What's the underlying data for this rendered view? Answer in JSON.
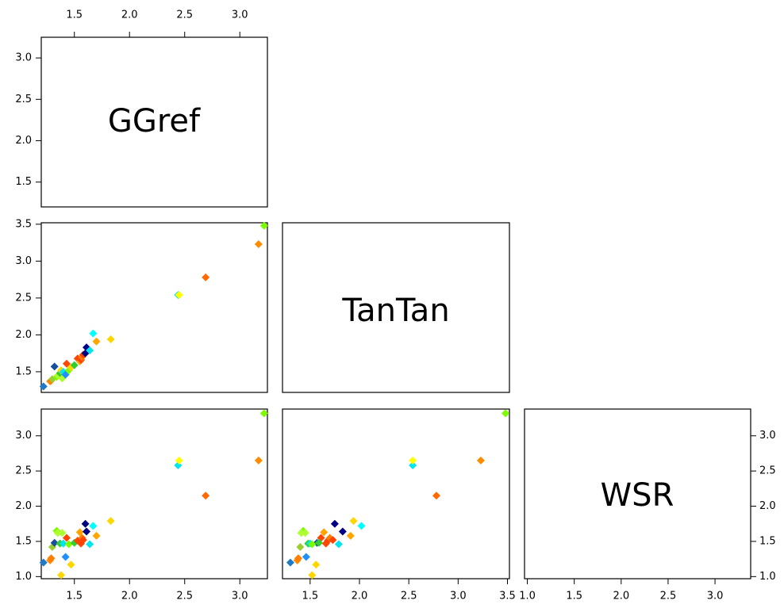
{
  "chart_data": {
    "type": "scatter",
    "variables": [
      "GGref",
      "TanTan",
      "WSR"
    ],
    "axes": {
      "GGref": {
        "range": [
          1.2,
          3.25
        ],
        "ticks": [
          1.5,
          2.0,
          2.5,
          3.0
        ],
        "tick_labels": [
          "1.5",
          "2.0",
          "2.5",
          "3.0"
        ]
      },
      "TanTan": {
        "range": [
          1.22,
          3.52
        ],
        "ticks": [
          1.5,
          2.0,
          2.5,
          3.0,
          3.5
        ],
        "tick_labels": [
          "1.5",
          "2.0",
          "2.5",
          "3.0",
          "3.5"
        ]
      },
      "WSR": {
        "range": [
          0.97,
          3.38
        ],
        "ticks": [
          1.0,
          1.5,
          2.0,
          2.5,
          3.0
        ],
        "tick_labels": [
          "1.0",
          "1.5",
          "2.0",
          "2.5",
          "3.0"
        ]
      }
    },
    "points": [
      {
        "GGref": 1.22,
        "TanTan": 1.3,
        "WSR": 1.2,
        "color": "#1f78c8"
      },
      {
        "GGref": 1.28,
        "TanTan": 1.37,
        "WSR": 1.23,
        "color": "#ff8c00"
      },
      {
        "GGref": 1.29,
        "TanTan": 1.38,
        "WSR": 1.26,
        "color": "#ff7f00"
      },
      {
        "GGref": 1.3,
        "TanTan": 1.4,
        "WSR": 1.42,
        "color": "#9acd32"
      },
      {
        "GGref": 1.32,
        "TanTan": 1.57,
        "WSR": 1.48,
        "color": "#1a4f9e"
      },
      {
        "GGref": 1.34,
        "TanTan": 1.43,
        "WSR": 1.65,
        "color": "#7cfc00"
      },
      {
        "GGref": 1.35,
        "TanTan": 1.45,
        "WSR": 1.62,
        "color": "#adff2f"
      },
      {
        "GGref": 1.37,
        "TanTan": 1.48,
        "WSR": 1.47,
        "color": "#32cd32"
      },
      {
        "GGref": 1.38,
        "TanTan": 1.52,
        "WSR": 1.02,
        "color": "#ffd700"
      },
      {
        "GGref": 1.39,
        "TanTan": 1.41,
        "WSR": 1.62,
        "color": "#adff2f"
      },
      {
        "GGref": 1.4,
        "TanTan": 1.5,
        "WSR": 1.47,
        "color": "#00e5ee"
      },
      {
        "GGref": 1.42,
        "TanTan": 1.46,
        "WSR": 1.28,
        "color": "#1e90ff"
      },
      {
        "GGref": 1.43,
        "TanTan": 1.61,
        "WSR": 1.55,
        "color": "#ff4500"
      },
      {
        "GGref": 1.45,
        "TanTan": 1.52,
        "WSR": 1.46,
        "color": "#7cfc00"
      },
      {
        "GGref": 1.47,
        "TanTan": 1.56,
        "WSR": 1.17,
        "color": "#ffd700"
      },
      {
        "GGref": 1.5,
        "TanTan": 1.59,
        "WSR": 1.48,
        "color": "#32cd32"
      },
      {
        "GGref": 1.53,
        "TanTan": 1.68,
        "WSR": 1.51,
        "color": "#ff4500"
      },
      {
        "GGref": 1.55,
        "TanTan": 1.64,
        "WSR": 1.63,
        "color": "#ffa500"
      },
      {
        "GGref": 1.56,
        "TanTan": 1.66,
        "WSR": 1.47,
        "color": "#ff4500"
      },
      {
        "GGref": 1.57,
        "TanTan": 1.7,
        "WSR": 1.55,
        "color": "#ff7f00"
      },
      {
        "GGref": 1.58,
        "TanTan": 1.73,
        "WSR": 1.52,
        "color": "#ff4500"
      },
      {
        "GGref": 1.6,
        "TanTan": 1.75,
        "WSR": 1.75,
        "color": "#000080"
      },
      {
        "GGref": 1.61,
        "TanTan": 1.83,
        "WSR": 1.64,
        "color": "#00008b"
      },
      {
        "GGref": 1.64,
        "TanTan": 1.79,
        "WSR": 1.46,
        "color": "#00e5ee"
      },
      {
        "GGref": 1.67,
        "TanTan": 2.02,
        "WSR": 1.72,
        "color": "#00ffff"
      },
      {
        "GGref": 1.7,
        "TanTan": 1.91,
        "WSR": 1.58,
        "color": "#ffa500"
      },
      {
        "GGref": 1.83,
        "TanTan": 1.94,
        "WSR": 1.79,
        "color": "#ffd700"
      },
      {
        "GGref": 2.44,
        "TanTan": 2.54,
        "WSR": 2.58,
        "color": "#00e5ee"
      },
      {
        "GGref": 2.45,
        "TanTan": 2.54,
        "WSR": 2.65,
        "color": "#ffff00"
      },
      {
        "GGref": 2.69,
        "TanTan": 2.78,
        "WSR": 2.15,
        "color": "#ff6a00"
      },
      {
        "GGref": 3.17,
        "TanTan": 3.23,
        "WSR": 2.65,
        "color": "#ff8c00"
      },
      {
        "GGref": 3.22,
        "TanTan": 3.48,
        "WSR": 3.32,
        "color": "#7cfc00"
      }
    ]
  }
}
